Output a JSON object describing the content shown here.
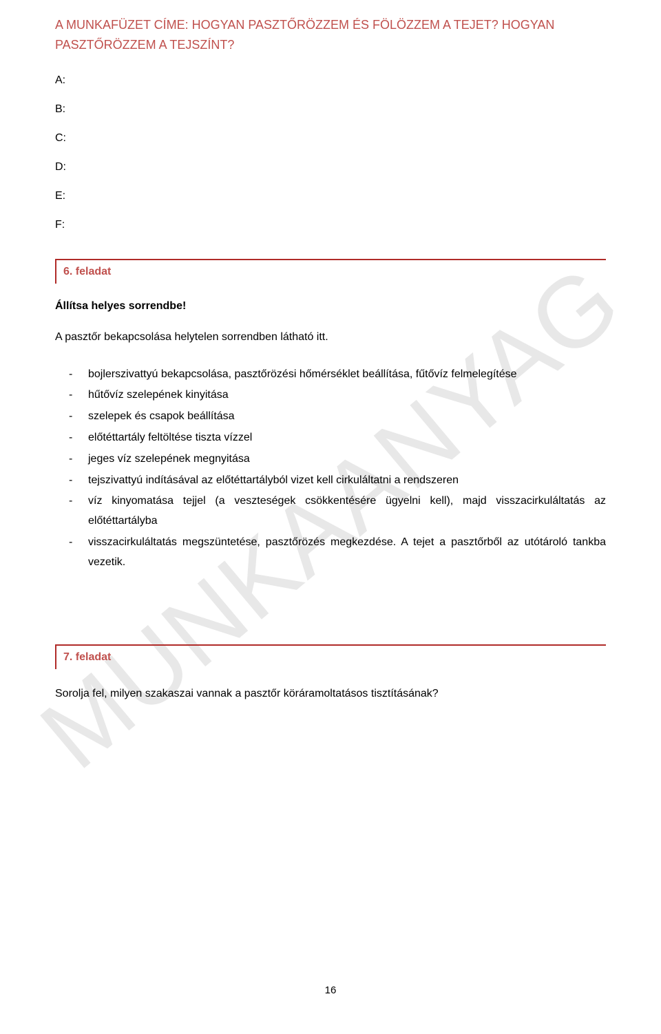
{
  "watermark": "MUNKAANYAG",
  "pageTitle": "A MUNKAFÜZET CÍME: HOGYAN PASZTŐRÖZZEM ÉS FÖLÖZZEM A TEJET? HOGYAN PASZTŐRÖZZEM A TEJSZÍNT?",
  "answers": {
    "a": "A:",
    "b": "B:",
    "c": "C:",
    "d": "D:",
    "e": "E:",
    "f": "F:"
  },
  "task6": {
    "header": "6. feladat",
    "instruction": "Állítsa helyes sorrendbe!",
    "description": "A pasztőr bekapcsolása helytelen sorrendben látható itt.",
    "items": [
      "bojlerszivattyú bekapcsolása, pasztőrözési hőmérséklet beállítása, fűtővíz felmelegítése",
      "hűtővíz szelepének kinyitása",
      "szelepek és csapok beállítása",
      "előtéttartály feltöltése tiszta vízzel",
      "jeges víz szelepének megnyitása",
      "tejszivattyú indításával az előtéttartályból vizet kell cirkuláltatni a rendszeren",
      "víz kinyomatása tejjel (a veszteségek csökkentésére ügyelni kell), majd visszacirkuláltatás az előtéttartályba",
      "visszacirkuláltatás megszüntetése, pasztőrözés megkezdése. A tejet a pasztőrből az utótároló tankba vezetik."
    ]
  },
  "task7": {
    "header": "7. feladat",
    "question": "Sorolja fel, milyen szakaszai vannak a pasztőr köráramoltatásos tisztításának?"
  },
  "pageNumber": "16"
}
